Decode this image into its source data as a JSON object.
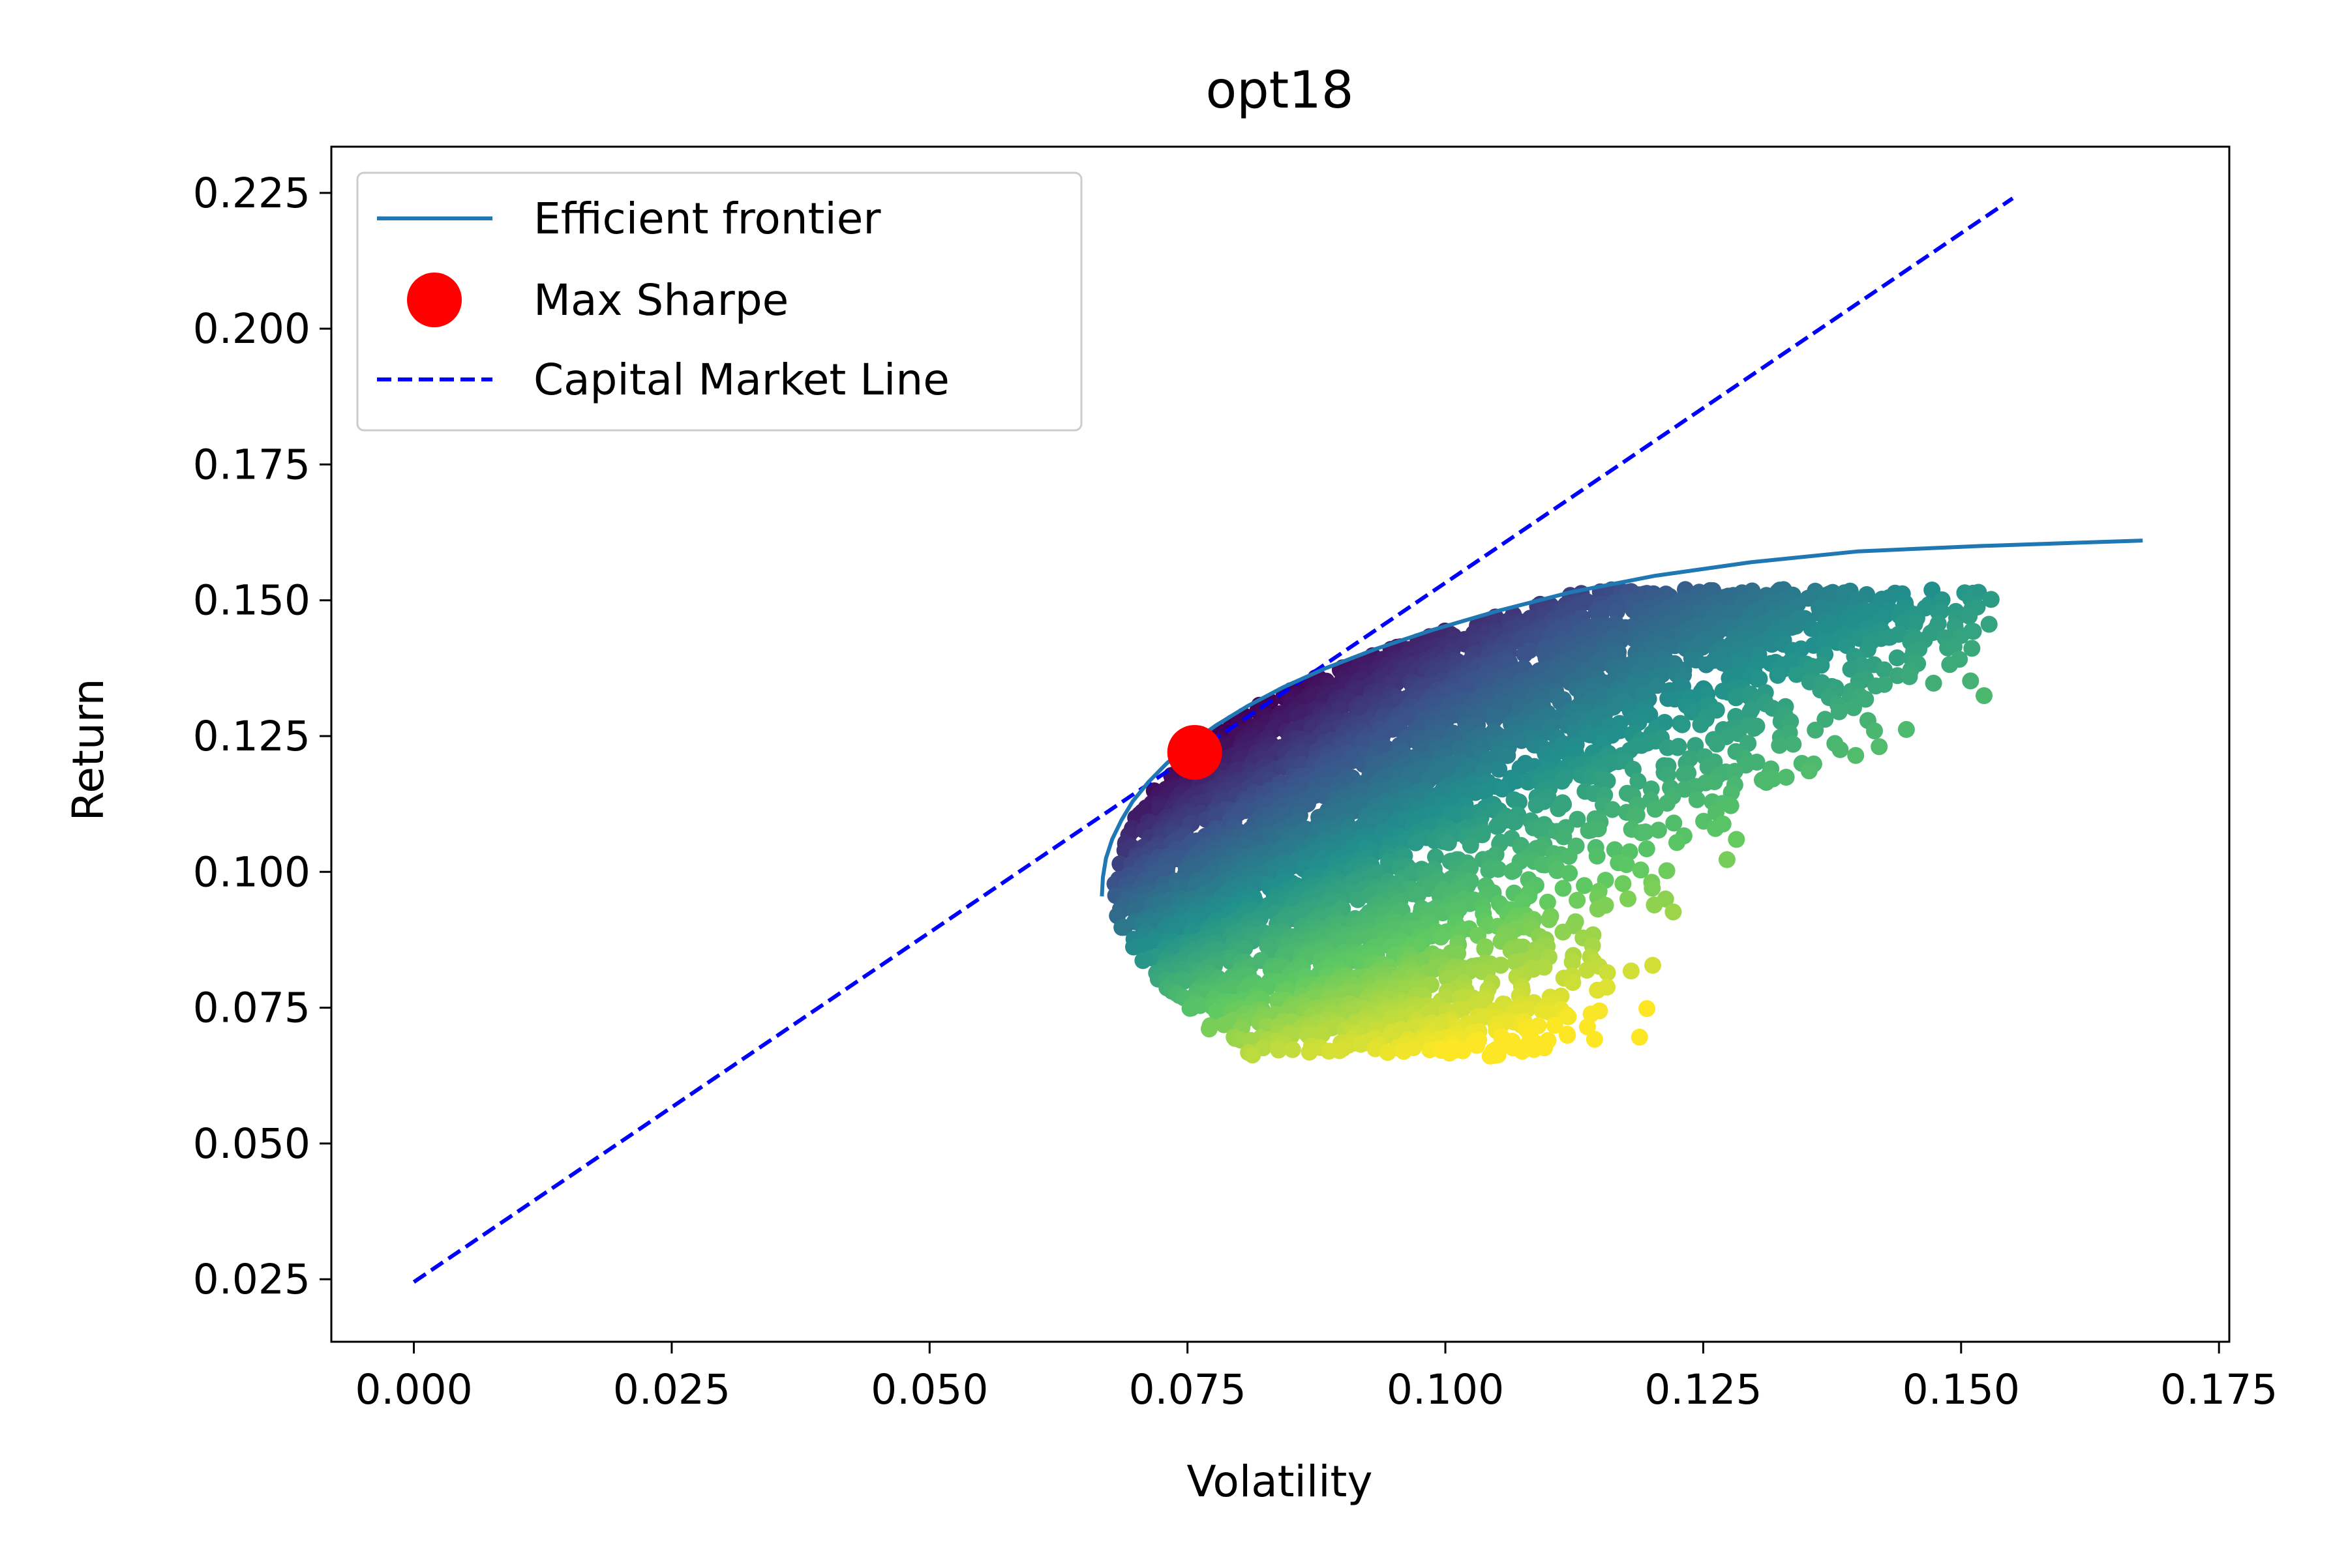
{
  "chart_data": {
    "type": "scatter",
    "title": "opt18",
    "xlabel": "Volatility",
    "ylabel": "Return",
    "xlim": [
      -0.008,
      0.176
    ],
    "ylim": [
      0.0135,
      0.2335
    ],
    "x_ticks": [
      0.0,
      0.025,
      0.05,
      0.075,
      0.1,
      0.125,
      0.15,
      0.175
    ],
    "x_tick_labels": [
      "0.000",
      "0.025",
      "0.050",
      "0.075",
      "0.100",
      "0.125",
      "0.150",
      "0.175"
    ],
    "y_ticks": [
      0.025,
      0.05,
      0.075,
      0.1,
      0.125,
      0.15,
      0.175,
      0.2,
      0.225
    ],
    "y_tick_labels": [
      "0.025",
      "0.050",
      "0.075",
      "0.100",
      "0.125",
      "0.150",
      "0.175",
      "0.200",
      "0.225"
    ],
    "grid": false,
    "legend": {
      "position": "upper-left",
      "entries": [
        "Efficient frontier",
        "Max Sharpe",
        "Capital Market Line"
      ]
    },
    "series": [
      {
        "name": "Efficient frontier",
        "kind": "line",
        "color": "#1f77b4",
        "x": [
          0.0667,
          0.0668,
          0.0671,
          0.0677,
          0.0686,
          0.0697,
          0.0712,
          0.073,
          0.0752,
          0.0778,
          0.0808,
          0.0843,
          0.0884,
          0.0932,
          0.0987,
          0.105,
          0.1122,
          0.1203,
          0.1296,
          0.14,
          0.152,
          0.1676
        ],
        "y": [
          0.0955,
          0.099,
          0.1025,
          0.106,
          0.1095,
          0.113,
          0.1165,
          0.12,
          0.1235,
          0.127,
          0.1305,
          0.134,
          0.1375,
          0.141,
          0.1445,
          0.148,
          0.1515,
          0.1545,
          0.157,
          0.159,
          0.16,
          0.161
        ]
      },
      {
        "name": "Max Sharpe",
        "kind": "point",
        "color": "#ff0000",
        "x": [
          0.0757
        ],
        "y": [
          0.122
        ]
      },
      {
        "name": "Capital Market Line",
        "kind": "dashed-line",
        "color": "#0000ff",
        "x": [
          0.0,
          0.155
        ],
        "y": [
          0.0245,
          0.224
        ]
      },
      {
        "kind": "scatter-cloud",
        "colormap": "viridis",
        "colormap_range": [
          "#440154",
          "#3b528b",
          "#21918c",
          "#5ec962",
          "#fde725"
        ],
        "count": 4000,
        "extent_x": [
          0.0665,
          0.155
        ],
        "extent_y": [
          0.062,
          0.155
        ]
      }
    ]
  }
}
